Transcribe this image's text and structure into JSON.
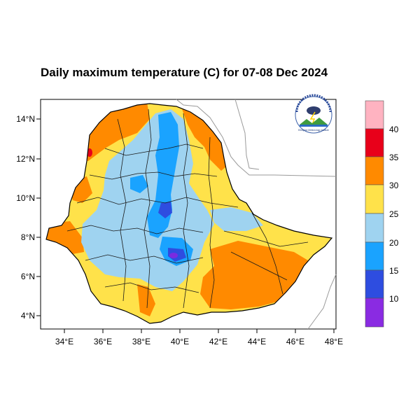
{
  "title": "Daily maximum temperature (C) for 07-08 Dec 2024",
  "axes": {
    "x_ticks": [
      "34°E",
      "36°E",
      "38°E",
      "40°E",
      "42°E",
      "44°E",
      "46°E",
      "48°E"
    ],
    "y_ticks": [
      "14°N",
      "12°N",
      "10°N",
      "8°N",
      "6°N",
      "4°N"
    ]
  },
  "legend": {
    "labels": [
      "40",
      "35",
      "30",
      "25",
      "20",
      "15",
      "10"
    ],
    "bins": [
      {
        "color": "#ffb3c1"
      },
      {
        "color": "#e8001a"
      },
      {
        "color": "#ff8a00"
      },
      {
        "color": "#ffe24a"
      },
      {
        "color": "#9fd3f0"
      },
      {
        "color": "#1aa3ff"
      },
      {
        "color": "#2e4de0"
      },
      {
        "color": "#8a2be2"
      }
    ]
  },
  "colors": {
    "orange": "#ff8a00",
    "yellow": "#ffe24a",
    "light_blue": "#9fd3f0",
    "blue": "#1aa3ff",
    "dark_blue": "#2e4de0",
    "purple": "#7a2be0",
    "red": "#e8001a"
  },
  "logo": {
    "caption": "Ethiopian Meteorology Institute"
  }
}
